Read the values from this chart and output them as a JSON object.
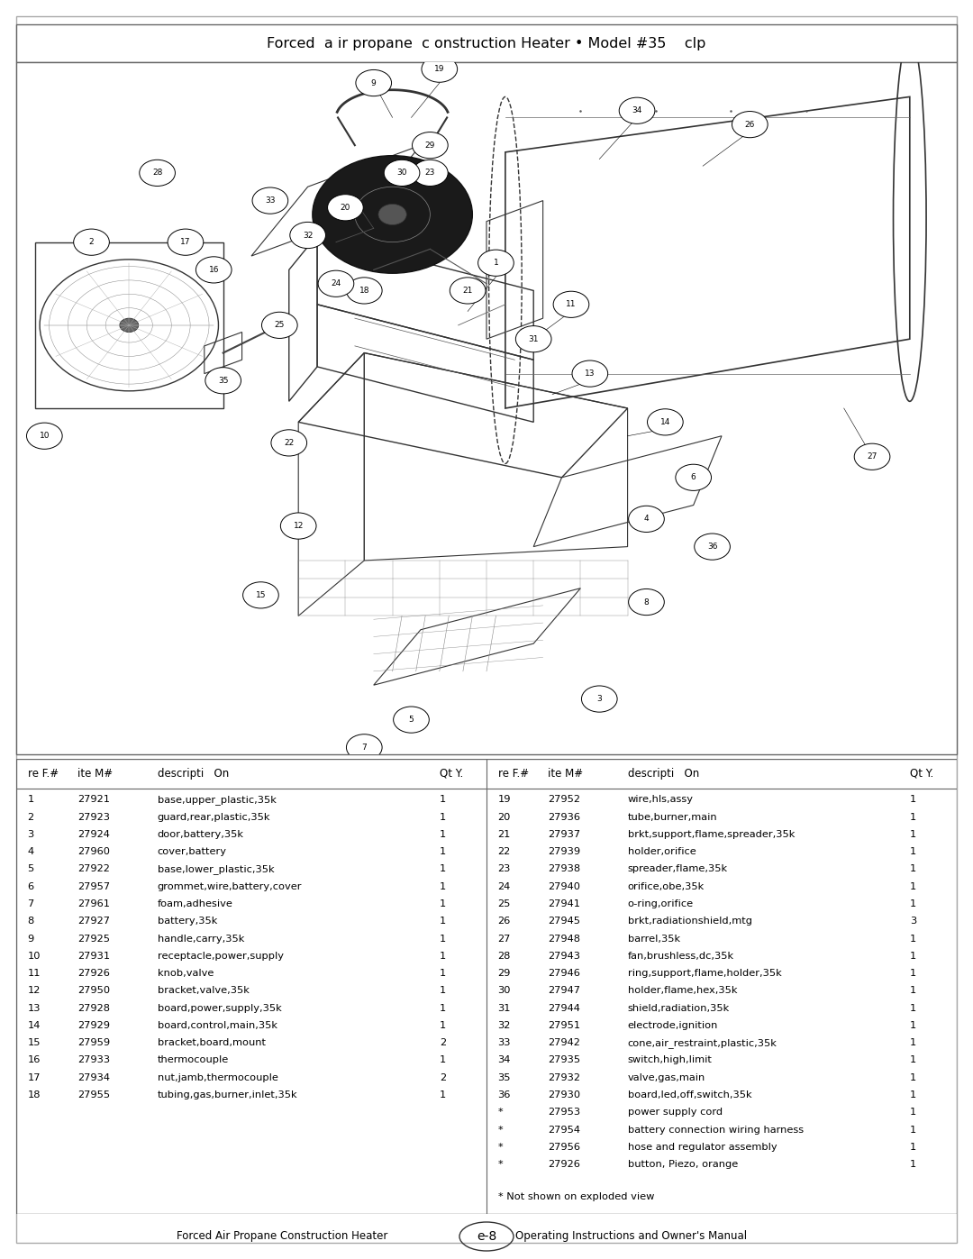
{
  "title": "Forced  a ir propane  c onstruction Heater • Model #35    clp",
  "footer_left": "Forced Air Propane Construction Heater",
  "footer_center": "e-8",
  "footer_right": "Operating Instructions and Owner's Manual",
  "parts_left": [
    [
      "1",
      "27921",
      "base,upper_plastic,35k",
      "1"
    ],
    [
      "2",
      "27923",
      "guard,rear,plastic,35k",
      "1"
    ],
    [
      "3",
      "27924",
      "door,battery,35k",
      "1"
    ],
    [
      "4",
      "27960",
      "cover,battery",
      "1"
    ],
    [
      "5",
      "27922",
      "base,lower_plastic,35k",
      "1"
    ],
    [
      "6",
      "27957",
      "grommet,wire,battery,cover",
      "1"
    ],
    [
      "7",
      "27961",
      "foam,adhesive",
      "1"
    ],
    [
      "8",
      "27927",
      "battery,35k",
      "1"
    ],
    [
      "9",
      "27925",
      "handle,carry,35k",
      "1"
    ],
    [
      "10",
      "27931",
      "receptacle,power,supply",
      "1"
    ],
    [
      "11",
      "27926",
      "knob,valve",
      "1"
    ],
    [
      "12",
      "27950",
      "bracket,valve,35k",
      "1"
    ],
    [
      "13",
      "27928",
      "board,power,supply,35k",
      "1"
    ],
    [
      "14",
      "27929",
      "board,control,main,35k",
      "1"
    ],
    [
      "15",
      "27959",
      "bracket,board,mount",
      "2"
    ],
    [
      "16",
      "27933",
      "thermocouple",
      "1"
    ],
    [
      "17",
      "27934",
      "nut,jamb,thermocouple",
      "2"
    ],
    [
      "18",
      "27955",
      "tubing,gas,burner,inlet,35k",
      "1"
    ]
  ],
  "parts_right": [
    [
      "19",
      "27952",
      "wire,hls,assy",
      "1"
    ],
    [
      "20",
      "27936",
      "tube,burner,main",
      "1"
    ],
    [
      "21",
      "27937",
      "brkt,support,flame,spreader,35k",
      "1"
    ],
    [
      "22",
      "27939",
      "holder,orifice",
      "1"
    ],
    [
      "23",
      "27938",
      "spreader,flame,35k",
      "1"
    ],
    [
      "24",
      "27940",
      "orifice,obe,35k",
      "1"
    ],
    [
      "25",
      "27941",
      "o-ring,orifice",
      "1"
    ],
    [
      "26",
      "27945",
      "brkt,radiationshield,mtg",
      "3"
    ],
    [
      "27",
      "27948",
      "barrel,35k",
      "1"
    ],
    [
      "28",
      "27943",
      "fan,brushless,dc,35k",
      "1"
    ],
    [
      "29",
      "27946",
      "ring,support,flame,holder,35k",
      "1"
    ],
    [
      "30",
      "27947",
      "holder,flame,hex,35k",
      "1"
    ],
    [
      "31",
      "27944",
      "shield,radiation,35k",
      "1"
    ],
    [
      "32",
      "27951",
      "electrode,ignition",
      "1"
    ],
    [
      "33",
      "27942",
      "cone,air_restraint,plastic,35k",
      "1"
    ],
    [
      "34",
      "27935",
      "switch,high,limit",
      "1"
    ],
    [
      "35",
      "27932",
      "valve,gas,main",
      "1"
    ],
    [
      "36",
      "27930",
      "board,led,off,switch,35k",
      "1"
    ],
    [
      "*",
      "27953",
      "power supply cord",
      "1"
    ],
    [
      "*",
      "27954",
      "battery connection wiring harness",
      "1"
    ],
    [
      "*",
      "27956",
      "hose and regulator assembly",
      "1"
    ],
    [
      "*",
      "27926",
      "button, Piezo, orange",
      "1"
    ]
  ],
  "footnote": "* Not shown on exploded view",
  "bg_color": "#ffffff",
  "line_color": "#666666",
  "text_color": "#000000"
}
